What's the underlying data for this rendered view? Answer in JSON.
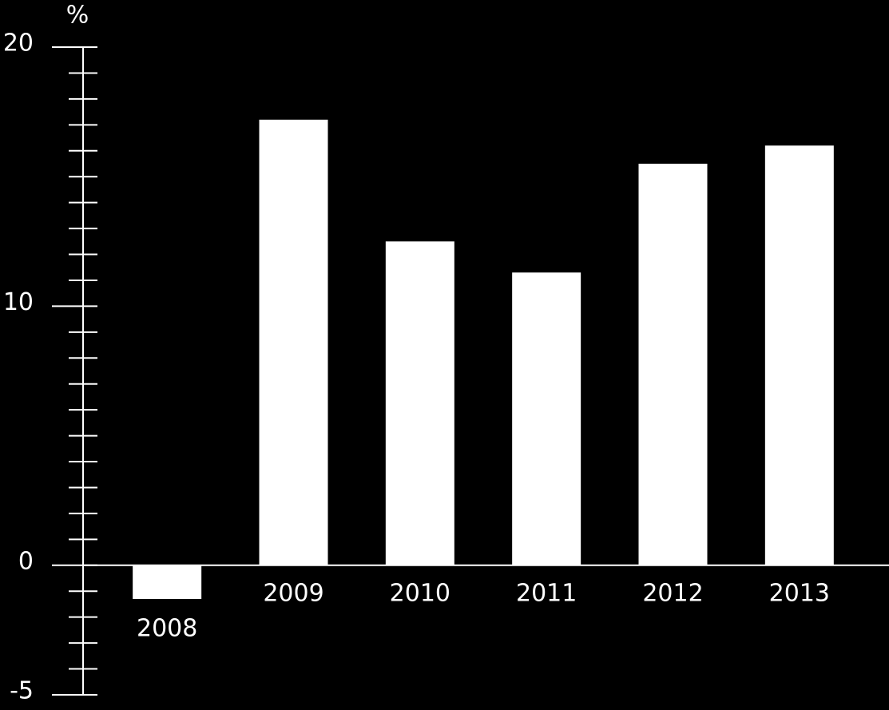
{
  "chart_data": {
    "type": "bar",
    "y_label": "%",
    "categories": [
      "2008",
      "2009",
      "2010",
      "2011",
      "2012",
      "2013"
    ],
    "values": [
      -1.3,
      17.2,
      12.5,
      11.3,
      15.5,
      16.2
    ],
    "color": "#ffffff",
    "ylim": [
      -5,
      20
    ],
    "yticks": [
      -5,
      0,
      10,
      20
    ],
    "yminorticks": [
      -4,
      -3,
      -2,
      -1,
      1,
      2,
      3,
      4,
      5,
      6,
      7,
      8,
      9,
      11,
      12,
      13,
      14,
      15,
      16,
      17,
      18,
      19
    ]
  }
}
